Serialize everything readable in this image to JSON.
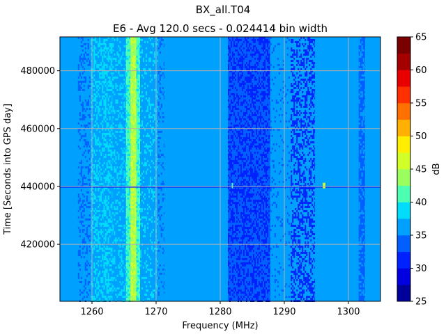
{
  "chart_data": {
    "type": "heatmap",
    "title": "BX_all.T04",
    "subtitle": "E6 - Avg 120.0 secs - 0.024414 bin width",
    "xlabel": "Frequency (MHz)",
    "ylabel": "Time [Seconds into GPS day]",
    "xlim": [
      1255.0,
      1305.0
    ],
    "ylim": [
      400300,
      491700
    ],
    "xticks": [
      1260,
      1270,
      1280,
      1290,
      1300
    ],
    "yticks": [
      420000,
      440000,
      460000,
      480000
    ],
    "xtick_labels": [
      "1260",
      "1270",
      "1280",
      "1290",
      "1300"
    ],
    "ytick_labels": [
      "420000",
      "440000",
      "460000",
      "480000"
    ],
    "grid": true,
    "colorbar": {
      "label": "dB",
      "levels": [
        25,
        27.5,
        30,
        32.5,
        35,
        37.5,
        40,
        42.5,
        45,
        47.5,
        50,
        52.5,
        55,
        57.5,
        60,
        62.5,
        65
      ],
      "tick_values": [
        25,
        30,
        35,
        40,
        45,
        50,
        55,
        60,
        65
      ],
      "tick_labels": [
        "25",
        "30",
        "35",
        "40",
        "45",
        "50",
        "55",
        "60",
        "65"
      ],
      "colors": [
        "#00009a",
        "#0000e0",
        "#0022ff",
        "#0060ff",
        "#00a0ff",
        "#00dcfa",
        "#4dffb0",
        "#9aff5e",
        "#d2ff28",
        "#ffee00",
        "#ffb000",
        "#ff7000",
        "#ff3000",
        "#e80000",
        "#a50000",
        "#7a0000"
      ]
    },
    "background_db": 36,
    "frequency_bands": [
      {
        "f_start": 1255.0,
        "f_end": 1257.8,
        "db": 36,
        "mix": 0.0,
        "alt_db": 36
      },
      {
        "f_start": 1257.8,
        "f_end": 1259.8,
        "db": 36,
        "mix": 0.3,
        "alt_db": 34
      },
      {
        "f_start": 1259.8,
        "f_end": 1261.8,
        "db": 36,
        "mix": 0.4,
        "alt_db": 38
      },
      {
        "f_start": 1261.8,
        "f_end": 1263.2,
        "db": 38,
        "mix": 0.5,
        "alt_db": 36
      },
      {
        "f_start": 1263.2,
        "f_end": 1265.3,
        "db": 36,
        "mix": 0.3,
        "alt_db": 38
      },
      {
        "f_start": 1265.3,
        "f_end": 1266.0,
        "db": 41,
        "mix": 0.3,
        "alt_db": 38
      },
      {
        "f_start": 1266.0,
        "f_end": 1266.9,
        "db": 43,
        "mix": 0.5,
        "alt_db": 46
      },
      {
        "f_start": 1266.9,
        "f_end": 1267.5,
        "db": 41,
        "mix": 0.3,
        "alt_db": 38
      },
      {
        "f_start": 1267.5,
        "f_end": 1270.3,
        "db": 36,
        "mix": 0.2,
        "alt_db": 38
      },
      {
        "f_start": 1270.3,
        "f_end": 1271.3,
        "db": 36,
        "mix": 0.2,
        "alt_db": 34
      },
      {
        "f_start": 1271.3,
        "f_end": 1281.2,
        "db": 36,
        "mix": 0.0,
        "alt_db": 36
      },
      {
        "f_start": 1281.2,
        "f_end": 1287.8,
        "db": 34,
        "mix": 0.45,
        "alt_db": 31
      },
      {
        "f_start": 1287.8,
        "f_end": 1291.0,
        "db": 36,
        "mix": 0.1,
        "alt_db": 34
      },
      {
        "f_start": 1291.0,
        "f_end": 1294.8,
        "db": 36,
        "mix": 0.45,
        "alt_db": 31
      },
      {
        "f_start": 1294.8,
        "f_end": 1301.6,
        "db": 36,
        "mix": 0.0,
        "alt_db": 36
      },
      {
        "f_start": 1301.6,
        "f_end": 1302.6,
        "db": 34,
        "mix": 0.3,
        "alt_db": 36
      },
      {
        "f_start": 1302.6,
        "f_end": 1305.0,
        "db": 36,
        "mix": 0.0,
        "alt_db": 36
      }
    ],
    "events": [
      {
        "time": 439800,
        "f_start": 1255.0,
        "f_end": 1305.0,
        "db": 31
      },
      {
        "time": 440300,
        "f_start": 1281.8,
        "f_end": 1282.0,
        "db": 42
      },
      {
        "time": 440300,
        "f_start": 1296.0,
        "f_end": 1296.4,
        "db": 46
      }
    ]
  }
}
